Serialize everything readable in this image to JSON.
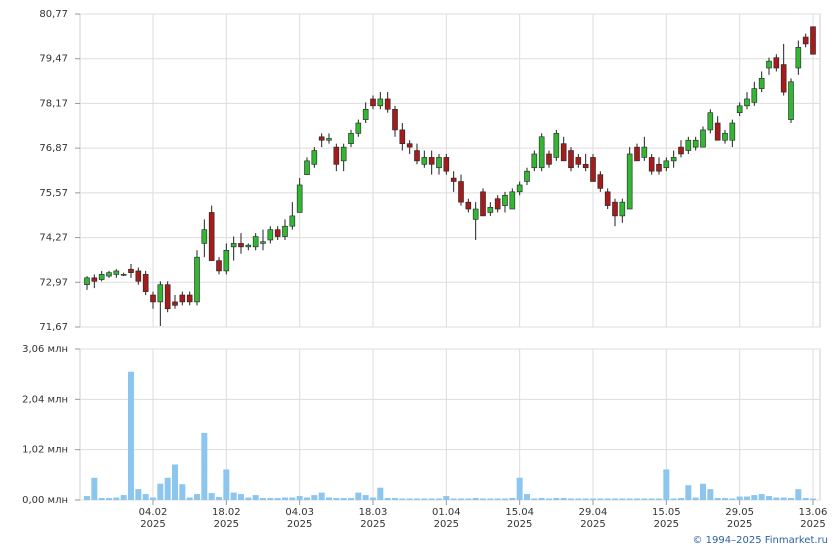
{
  "chart_data": [
    {
      "type": "candlestick",
      "ylim": [
        71.67,
        80.77
      ],
      "yticks": [
        {
          "value": 71.67,
          "label": "71,67"
        },
        {
          "value": 72.97,
          "label": "72,97"
        },
        {
          "value": 74.27,
          "label": "74,27"
        },
        {
          "value": 75.57,
          "label": "75,57"
        },
        {
          "value": 76.87,
          "label": "76,87"
        },
        {
          "value": 78.17,
          "label": "78,17"
        },
        {
          "value": 79.47,
          "label": "79,47"
        },
        {
          "value": 80.77,
          "label": "80,77"
        }
      ],
      "up_color": "#33b633",
      "down_color": "#a51c1c",
      "grid": true,
      "candles": [
        [
          72.9,
          73.15,
          72.75,
          73.1
        ],
        [
          73.1,
          73.2,
          72.8,
          73.0
        ],
        [
          73.05,
          73.3,
          73.0,
          73.2
        ],
        [
          73.15,
          73.3,
          73.1,
          73.25
        ],
        [
          73.2,
          73.35,
          73.1,
          73.3
        ],
        [
          73.2,
          73.25,
          73.15,
          73.2
        ],
        [
          73.35,
          73.5,
          73.1,
          73.25
        ],
        [
          73.3,
          73.4,
          72.9,
          73.0
        ],
        [
          73.2,
          73.3,
          72.6,
          72.7
        ],
        [
          72.6,
          72.7,
          72.2,
          72.4
        ],
        [
          72.4,
          73.0,
          71.7,
          72.9
        ],
        [
          72.9,
          73.0,
          72.1,
          72.2
        ],
        [
          72.4,
          72.6,
          72.2,
          72.3
        ],
        [
          72.6,
          72.7,
          72.3,
          72.4
        ],
        [
          72.6,
          72.7,
          72.3,
          72.4
        ],
        [
          72.4,
          73.9,
          72.3,
          73.7
        ],
        [
          74.1,
          74.8,
          73.7,
          74.5
        ],
        [
          75.0,
          75.2,
          73.6,
          73.6
        ],
        [
          73.6,
          73.7,
          73.2,
          73.3
        ],
        [
          73.3,
          74.1,
          73.2,
          73.9
        ],
        [
          74.0,
          74.3,
          73.6,
          74.1
        ],
        [
          74.1,
          74.4,
          73.8,
          74.0
        ],
        [
          74.0,
          74.1,
          73.9,
          74.05
        ],
        [
          74.0,
          74.4,
          73.9,
          74.3
        ],
        [
          74.1,
          74.5,
          73.9,
          74.15
        ],
        [
          74.2,
          74.6,
          74.1,
          74.5
        ],
        [
          74.5,
          74.6,
          74.2,
          74.3
        ],
        [
          74.3,
          74.8,
          74.2,
          74.6
        ],
        [
          74.6,
          75.3,
          74.5,
          74.9
        ],
        [
          75.0,
          76.0,
          75.0,
          75.8
        ],
        [
          76.1,
          76.6,
          76.1,
          76.5
        ],
        [
          76.4,
          76.9,
          76.3,
          76.8
        ],
        [
          77.2,
          77.3,
          76.9,
          77.1
        ],
        [
          77.1,
          77.3,
          77.0,
          77.15
        ],
        [
          76.9,
          77.0,
          76.2,
          76.4
        ],
        [
          76.5,
          77.0,
          76.2,
          76.9
        ],
        [
          77.0,
          77.4,
          76.9,
          77.3
        ],
        [
          77.3,
          77.7,
          77.2,
          77.6
        ],
        [
          77.7,
          78.2,
          77.6,
          78.0
        ],
        [
          78.3,
          78.4,
          78.0,
          78.1
        ],
        [
          78.1,
          78.5,
          78.0,
          78.3
        ],
        [
          78.3,
          78.5,
          77.9,
          78.0
        ],
        [
          78.0,
          78.1,
          77.2,
          77.4
        ],
        [
          77.4,
          77.6,
          76.8,
          77.0
        ],
        [
          77.0,
          77.1,
          76.7,
          76.9
        ],
        [
          76.8,
          77.0,
          76.4,
          76.5
        ],
        [
          76.4,
          76.8,
          76.3,
          76.6
        ],
        [
          76.6,
          76.8,
          76.1,
          76.4
        ],
        [
          76.3,
          76.7,
          76.1,
          76.6
        ],
        [
          76.6,
          76.7,
          76.1,
          76.2
        ],
        [
          76.0,
          76.2,
          75.6,
          75.9
        ],
        [
          75.9,
          76.1,
          75.2,
          75.3
        ],
        [
          75.3,
          75.4,
          75.0,
          75.1
        ],
        [
          74.8,
          75.3,
          74.2,
          75.1
        ],
        [
          75.6,
          75.7,
          74.9,
          74.9
        ],
        [
          75.0,
          75.3,
          74.9,
          75.15
        ],
        [
          75.4,
          75.5,
          75.0,
          75.1
        ],
        [
          75.2,
          75.6,
          75.0,
          75.5
        ],
        [
          75.1,
          75.7,
          75.1,
          75.6
        ],
        [
          75.6,
          75.9,
          75.5,
          75.8
        ],
        [
          75.9,
          76.3,
          75.8,
          76.2
        ],
        [
          76.3,
          76.8,
          76.2,
          76.7
        ],
        [
          76.3,
          77.3,
          76.2,
          77.2
        ],
        [
          76.7,
          76.8,
          76.3,
          76.4
        ],
        [
          76.6,
          77.4,
          76.5,
          77.3
        ],
        [
          77.0,
          77.2,
          76.5,
          76.5
        ],
        [
          76.8,
          76.9,
          76.2,
          76.3
        ],
        [
          76.6,
          76.7,
          76.3,
          76.4
        ],
        [
          76.4,
          76.7,
          76.2,
          76.3
        ],
        [
          76.6,
          76.7,
          75.9,
          75.9
        ],
        [
          76.1,
          76.2,
          75.6,
          75.7
        ],
        [
          75.6,
          75.7,
          75.1,
          75.2
        ],
        [
          75.3,
          75.4,
          74.6,
          74.9
        ],
        [
          74.9,
          75.4,
          74.7,
          75.3
        ],
        [
          75.1,
          76.9,
          75.1,
          76.7
        ],
        [
          76.9,
          77.0,
          76.5,
          76.5
        ],
        [
          76.6,
          77.2,
          76.5,
          76.9
        ],
        [
          76.6,
          76.7,
          76.1,
          76.2
        ],
        [
          76.4,
          76.6,
          76.1,
          76.2
        ],
        [
          76.3,
          76.6,
          76.2,
          76.5
        ],
        [
          76.5,
          76.8,
          76.3,
          76.6
        ],
        [
          76.9,
          77.1,
          76.6,
          76.7
        ],
        [
          76.8,
          77.2,
          76.7,
          77.1
        ],
        [
          76.9,
          77.2,
          76.8,
          77.1
        ],
        [
          76.9,
          77.5,
          76.9,
          77.4
        ],
        [
          77.4,
          78.0,
          77.3,
          77.9
        ],
        [
          77.6,
          77.8,
          77.1,
          77.1
        ],
        [
          77.1,
          77.4,
          77.0,
          77.3
        ],
        [
          77.1,
          77.7,
          76.9,
          77.6
        ],
        [
          77.9,
          78.2,
          77.8,
          78.1
        ],
        [
          78.1,
          78.5,
          78.0,
          78.3
        ],
        [
          78.2,
          78.8,
          78.1,
          78.6
        ],
        [
          78.6,
          79.1,
          78.5,
          78.9
        ],
        [
          79.2,
          79.5,
          79.0,
          79.4
        ],
        [
          79.5,
          79.6,
          79.1,
          79.2
        ],
        [
          79.3,
          79.9,
          78.4,
          78.5
        ],
        [
          77.7,
          78.9,
          77.6,
          78.8
        ],
        [
          79.2,
          80.0,
          79.0,
          79.8
        ],
        [
          80.1,
          80.2,
          79.8,
          79.9
        ],
        [
          80.4,
          80.4,
          79.6,
          79.6
        ]
      ]
    },
    {
      "type": "bar",
      "ylim": [
        0,
        3.06
      ],
      "yticks": [
        {
          "value": 0,
          "label": "0,00 млн"
        },
        {
          "value": 1.02,
          "label": "1,02 млн"
        },
        {
          "value": 2.04,
          "label": "2,04 млн"
        },
        {
          "value": 3.06,
          "label": "3,06 млн"
        }
      ],
      "color": "#8cc6ee",
      "grid": true,
      "categories": [
        null,
        null,
        null,
        null,
        null,
        null,
        null,
        null,
        null,
        "04.02\n2025",
        null,
        null,
        null,
        null,
        null,
        null,
        null,
        null,
        null,
        "18.02\n2025",
        null,
        null,
        null,
        null,
        null,
        null,
        null,
        null,
        null,
        "04.03\n2025",
        null,
        null,
        null,
        null,
        null,
        null,
        null,
        null,
        null,
        "18.03\n2025",
        null,
        null,
        null,
        null,
        null,
        null,
        null,
        null,
        null,
        "01.04\n2025",
        null,
        null,
        null,
        null,
        null,
        null,
        null,
        null,
        null,
        "15.04\n2025",
        null,
        null,
        null,
        null,
        null,
        null,
        null,
        null,
        null,
        "29.04\n2025",
        null,
        null,
        null,
        null,
        null,
        null,
        null,
        null,
        null,
        "15.05\n2025",
        null,
        null,
        null,
        null,
        null,
        null,
        null,
        null,
        null,
        "29.05\n2025",
        null,
        null,
        null,
        null,
        null,
        null,
        null,
        null,
        null,
        "13.06\n2025"
      ],
      "values": [
        0.08,
        0.45,
        0.04,
        0.04,
        0.05,
        0.1,
        2.6,
        0.22,
        0.12,
        0.05,
        0.33,
        0.45,
        0.72,
        0.32,
        0.05,
        0.12,
        1.36,
        0.14,
        0.06,
        0.62,
        0.15,
        0.12,
        0.05,
        0.1,
        0.04,
        0.04,
        0.04,
        0.05,
        0.05,
        0.08,
        0.05,
        0.1,
        0.15,
        0.05,
        0.04,
        0.04,
        0.04,
        0.15,
        0.1,
        0.05,
        0.25,
        0.04,
        0.04,
        0.03,
        0.03,
        0.03,
        0.03,
        0.03,
        0.03,
        0.08,
        0.03,
        0.03,
        0.03,
        0.04,
        0.03,
        0.03,
        0.03,
        0.03,
        0.04,
        0.45,
        0.12,
        0.03,
        0.04,
        0.03,
        0.04,
        0.04,
        0.03,
        0.03,
        0.03,
        0.03,
        0.03,
        0.03,
        0.03,
        0.03,
        0.03,
        0.03,
        0.03,
        0.03,
        0.03,
        0.62,
        0.03,
        0.04,
        0.3,
        0.05,
        0.33,
        0.22,
        0.04,
        0.04,
        0.03,
        0.07,
        0.07,
        0.1,
        0.12,
        0.08,
        0.05,
        0.05,
        0.04,
        0.22,
        0.04,
        0.03
      ]
    }
  ],
  "footer": "© 1994–2025 Finmarket.ru"
}
